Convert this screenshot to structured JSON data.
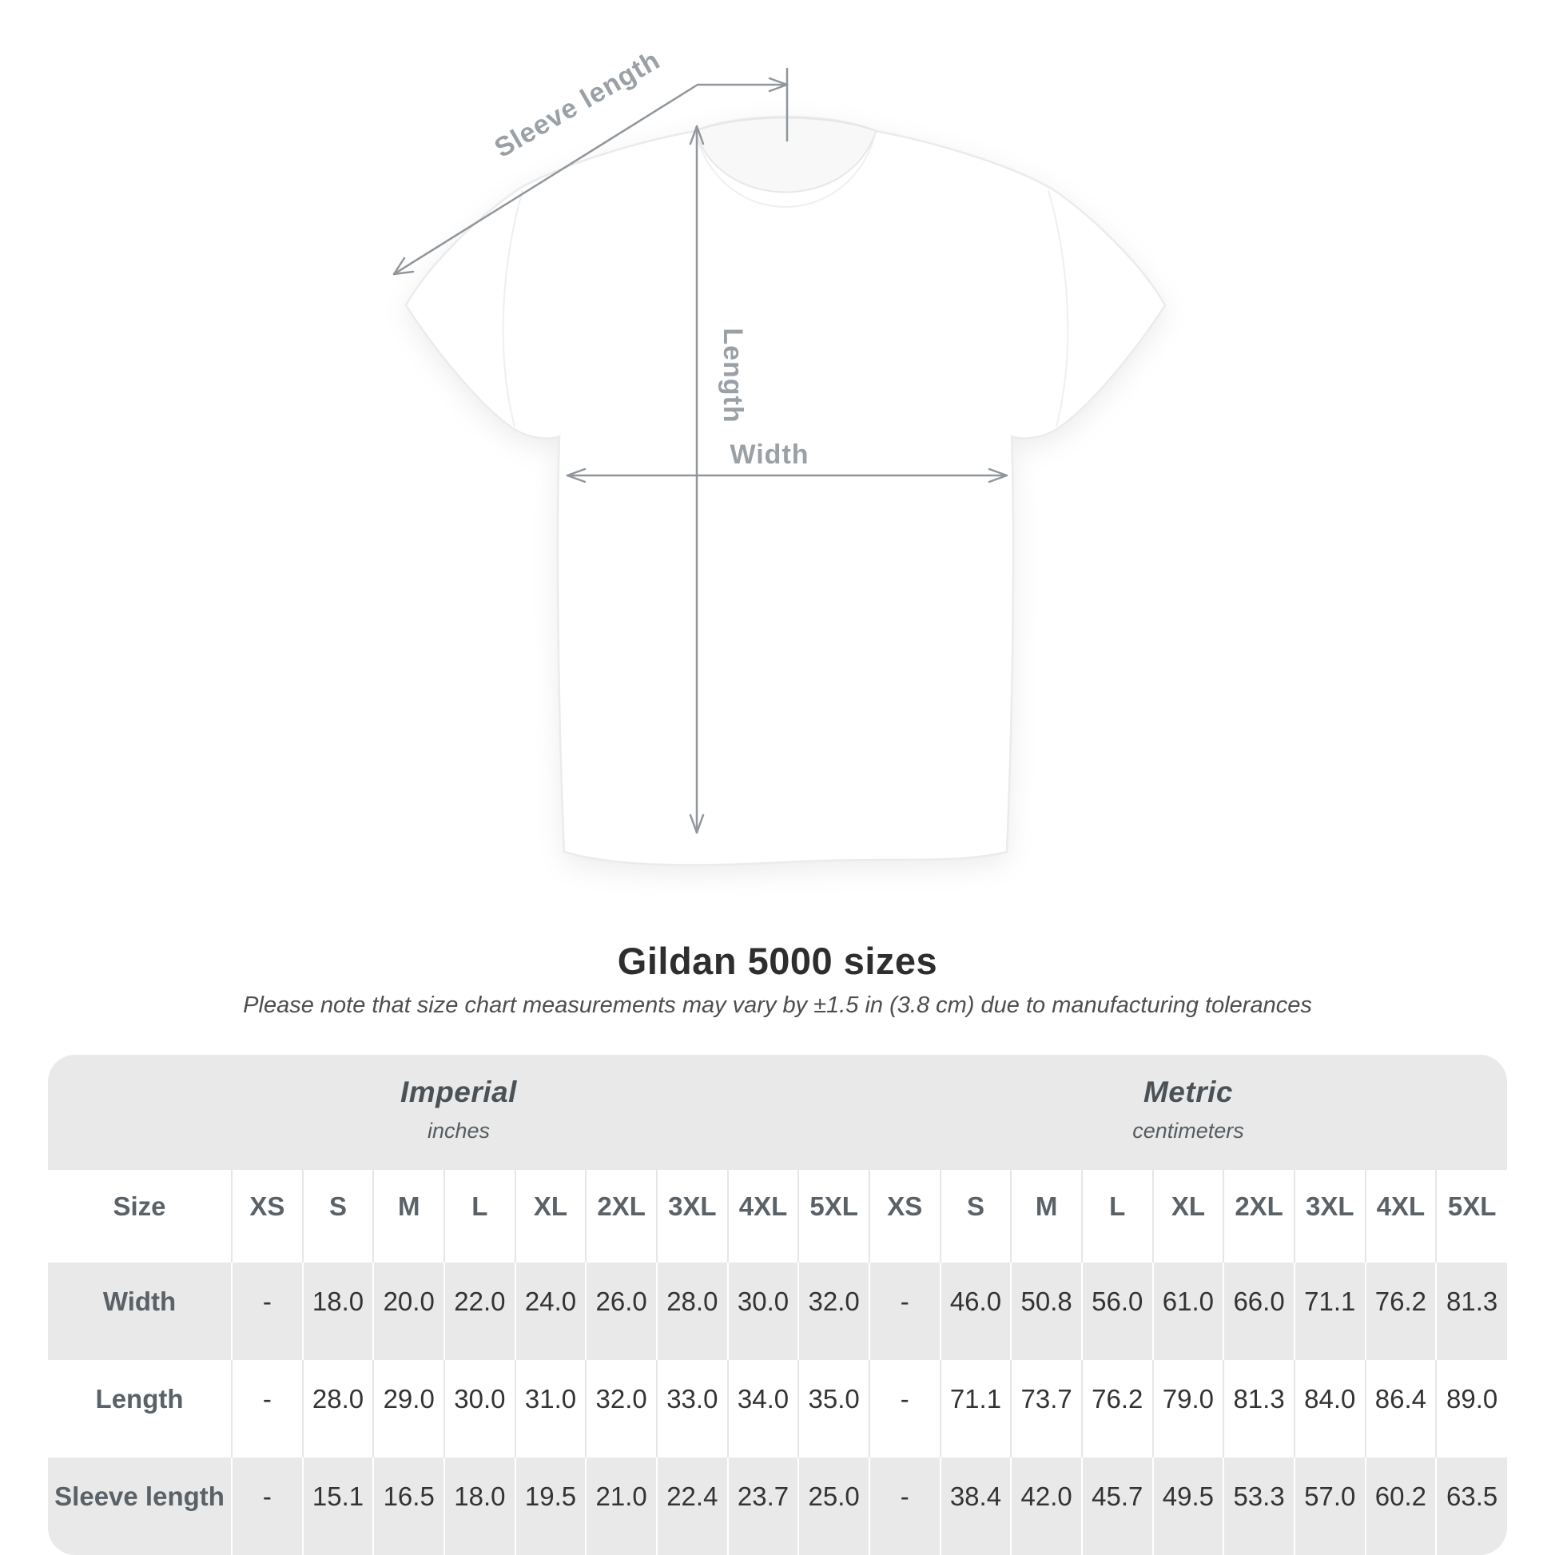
{
  "chart_data": {
    "type": "table",
    "title": "Gildan 5000 sizes",
    "subtitle": "Please note that size chart measurements may vary by ±1.5 in (3.8 cm) due to manufacturing tolerances",
    "size_column_label": "Size",
    "sizes": [
      "XS",
      "S",
      "M",
      "L",
      "XL",
      "2XL",
      "3XL",
      "4XL",
      "5XL"
    ],
    "unit_groups": [
      {
        "label": "Imperial",
        "sublabel": "inches"
      },
      {
        "label": "Metric",
        "sublabel": "centimeters"
      }
    ],
    "rows": [
      {
        "label": "Width",
        "imperial": [
          "-",
          "18.0",
          "20.0",
          "22.0",
          "24.0",
          "26.0",
          "28.0",
          "30.0",
          "32.0"
        ],
        "metric": [
          "-",
          "46.0",
          "50.8",
          "56.0",
          "61.0",
          "66.0",
          "71.1",
          "76.2",
          "81.3"
        ]
      },
      {
        "label": "Length",
        "imperial": [
          "-",
          "28.0",
          "29.0",
          "30.0",
          "31.0",
          "32.0",
          "33.0",
          "34.0",
          "35.0"
        ],
        "metric": [
          "-",
          "71.1",
          "73.7",
          "76.2",
          "79.0",
          "81.3",
          "84.0",
          "86.4",
          "89.0"
        ]
      },
      {
        "label": "Sleeve length",
        "imperial": [
          "-",
          "15.1",
          "16.5",
          "18.0",
          "19.5",
          "21.0",
          "22.4",
          "23.7",
          "25.0"
        ],
        "metric": [
          "-",
          "38.4",
          "42.0",
          "45.7",
          "49.5",
          "53.3",
          "57.0",
          "60.2",
          "63.5"
        ]
      }
    ]
  },
  "diagram": {
    "sleeve_length_label": "Sleeve length",
    "length_label": "Length",
    "width_label": "Width"
  },
  "colors": {
    "measure_gray": "#90969b",
    "measure_label_gray": "#9aa0a5",
    "row_shade": "#e9e9e9",
    "number_text": "#333333",
    "label_text": "#5a6167",
    "title_text": "#2e2e2e"
  }
}
